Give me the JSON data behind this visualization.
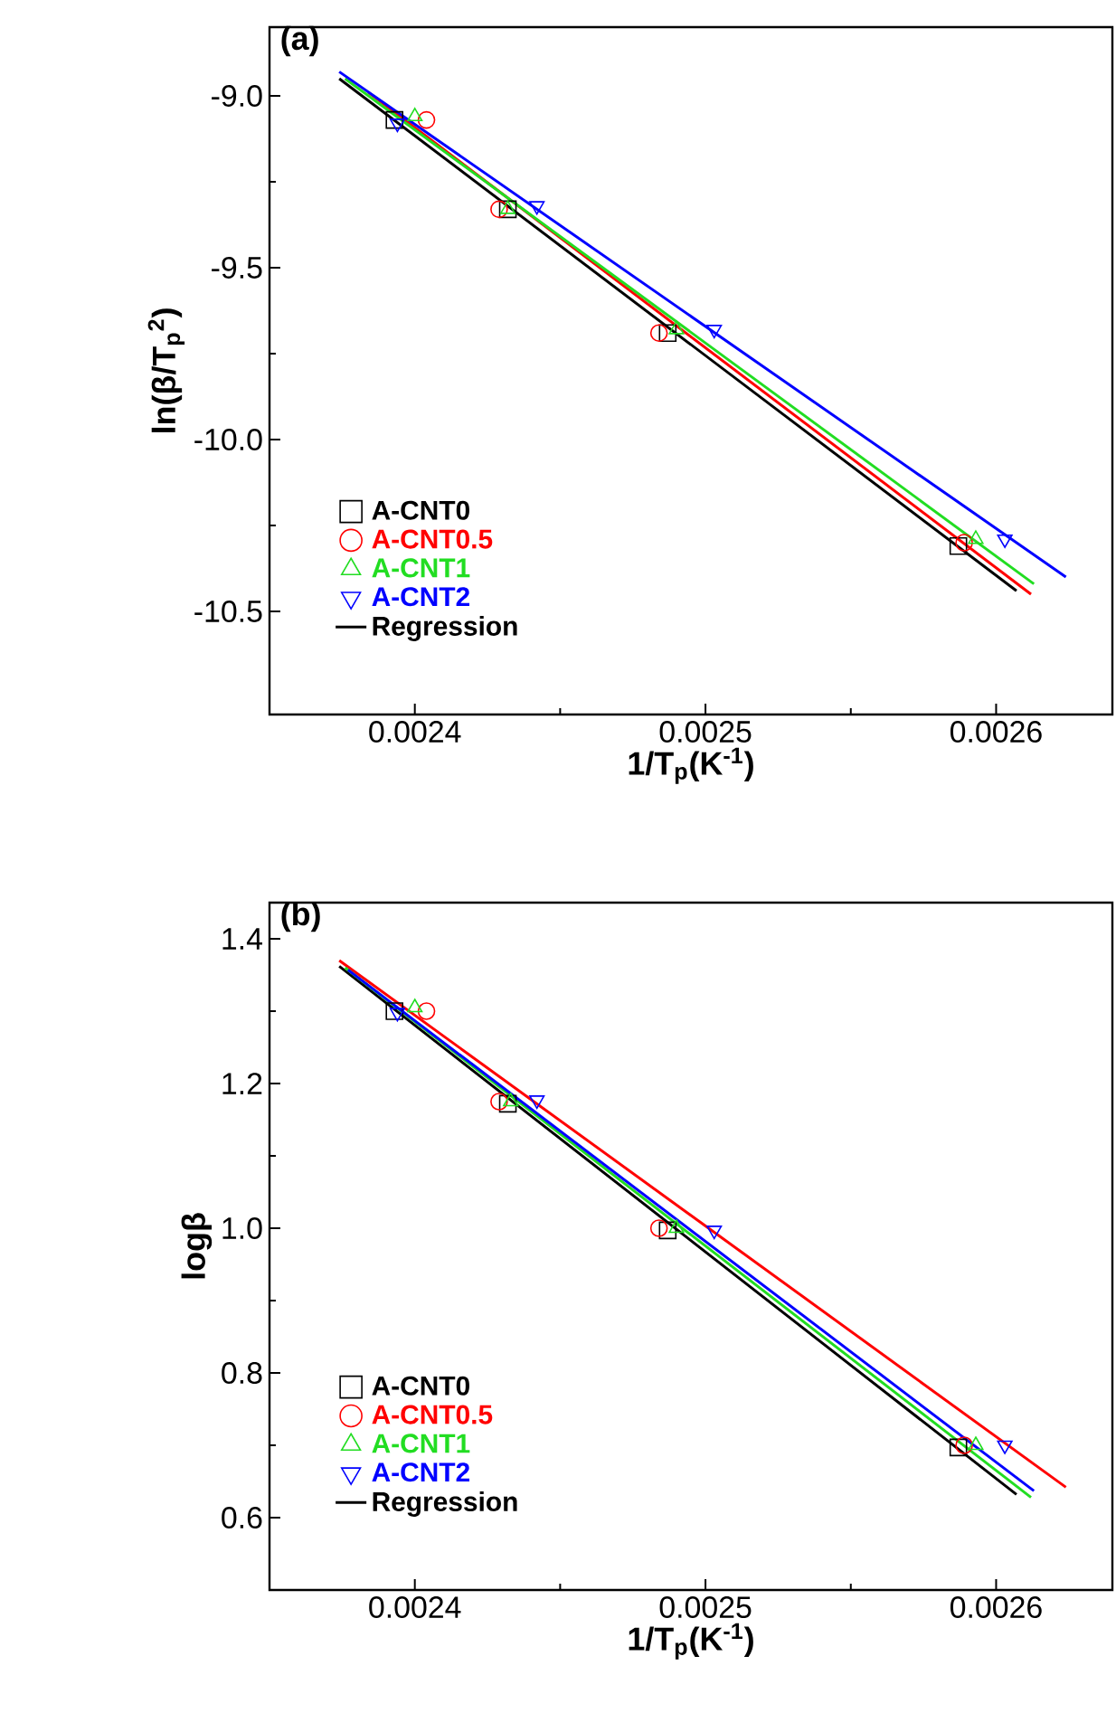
{
  "chart_data": [
    {
      "type": "scatter",
      "title": "(a)",
      "xlabel": "1/T$_{p}$(K$^{-1}$)",
      "ylabel": "ln(β/T$_{p}$$^{2}$)",
      "xlim": [
        0.00235,
        0.00264
      ],
      "xticks": [
        0.0024,
        0.0025,
        0.0026
      ],
      "ylim": [
        -10.8,
        -8.8
      ],
      "yticks": [
        {
          "value": -9.0,
          "label": "-9.0"
        },
        {
          "value": -9.5,
          "label": "-9.5"
        },
        {
          "value": -10.0,
          "label": "-10.0"
        },
        {
          "value": -10.5,
          "label": "-10.5"
        }
      ],
      "legend": "bottom left",
      "grid": false,
      "series": [
        {
          "name": "A-CNT0",
          "marker": "square",
          "color": "#000000",
          "x": [
            0.002393,
            0.002432,
            0.002487,
            0.002587
          ],
          "values": [
            -9.07,
            -9.33,
            -9.69,
            -10.31
          ]
        },
        {
          "name": "A-CNT0.5",
          "marker": "circle",
          "color": "#ff0000",
          "x": [
            0.002404,
            0.002429,
            0.002484,
            0.002589
          ],
          "values": [
            -9.07,
            -9.33,
            -9.69,
            -10.3
          ]
        },
        {
          "name": "A-CNT1",
          "marker": "triangle",
          "color": "#22dd22",
          "x": [
            0.0024,
            0.002432,
            0.00249,
            0.002593
          ],
          "values": [
            -9.06,
            -9.33,
            -9.68,
            -10.29
          ]
        },
        {
          "name": "A-CNT2",
          "marker": "triangle down",
          "color": "#0000ff",
          "x": [
            0.002394,
            0.002442,
            0.002503,
            0.002603
          ],
          "values": [
            -9.08,
            -9.32,
            -9.68,
            -10.29
          ]
        },
        {
          "name": "Regression",
          "type": "line",
          "color": "#000000",
          "x": [
            0.002374,
            0.002607
          ],
          "values": [
            -8.95,
            -10.44
          ]
        },
        {
          "type": "line",
          "color": "#ff0000",
          "x": [
            0.002384,
            0.002612
          ],
          "values": [
            -8.99,
            -10.45
          ]
        },
        {
          "type": "line",
          "color": "#22dd22",
          "x": [
            0.002376,
            0.002613
          ],
          "values": [
            -8.95,
            -10.42
          ]
        },
        {
          "type": "line",
          "color": "#0000ff",
          "x": [
            0.002374,
            0.002624
          ],
          "values": [
            -8.93,
            -10.4
          ]
        }
      ]
    },
    {
      "type": "scatter",
      "title": "(b)",
      "xlabel": "1/T$_{p}$(K$^{-1}$)",
      "ylabel": "logβ",
      "xlim": [
        0.00235,
        0.00264
      ],
      "xticks": [
        0.0024,
        0.0025,
        0.0026
      ],
      "ylim": [
        0.5,
        1.45
      ],
      "yticks": [
        {
          "value": 0.6,
          "label": "0.6"
        },
        {
          "value": 0.8,
          "label": "0.8"
        },
        {
          "value": 1.0,
          "label": "1.0"
        },
        {
          "value": 1.2,
          "label": "1.2"
        },
        {
          "value": 1.4,
          "label": "1.4"
        }
      ],
      "legend": "bottom left",
      "grid": false,
      "series": [
        {
          "name": "A-CNT0",
          "marker": "square",
          "color": "#000000",
          "x": [
            0.002393,
            0.002432,
            0.002487,
            0.002587
          ],
          "values": [
            1.3,
            1.172,
            0.997,
            0.697
          ]
        },
        {
          "name": "A-CNT0.5",
          "marker": "circle",
          "color": "#ff0000",
          "x": [
            0.002404,
            0.002429,
            0.002484,
            0.002589
          ],
          "values": [
            1.3,
            1.175,
            1.0,
            0.7
          ]
        },
        {
          "name": "A-CNT1",
          "marker": "triangle",
          "color": "#22dd22",
          "x": [
            0.0024,
            0.002433,
            0.00249,
            0.002593
          ],
          "values": [
            1.305,
            1.175,
            1.0,
            0.7
          ]
        },
        {
          "name": "A-CNT2",
          "marker": "triangle down",
          "color": "#0000ff",
          "x": [
            0.002394,
            0.002442,
            0.002503,
            0.002603
          ],
          "values": [
            1.298,
            1.177,
            0.997,
            0.7
          ]
        },
        {
          "name": "Regression",
          "type": "line",
          "color": "#000000",
          "x": [
            0.002374,
            0.002607
          ],
          "values": [
            1.362,
            0.632
          ]
        },
        {
          "type": "line",
          "color": "#ff0000",
          "x": [
            0.002374,
            0.002624
          ],
          "values": [
            1.37,
            0.642
          ]
        },
        {
          "type": "line",
          "color": "#22dd22",
          "x": [
            0.002376,
            0.002612
          ],
          "values": [
            1.36,
            0.628
          ]
        },
        {
          "type": "line",
          "color": "#0000ff",
          "x": [
            0.002377,
            0.002613
          ],
          "values": [
            1.357,
            0.637
          ]
        }
      ]
    }
  ]
}
